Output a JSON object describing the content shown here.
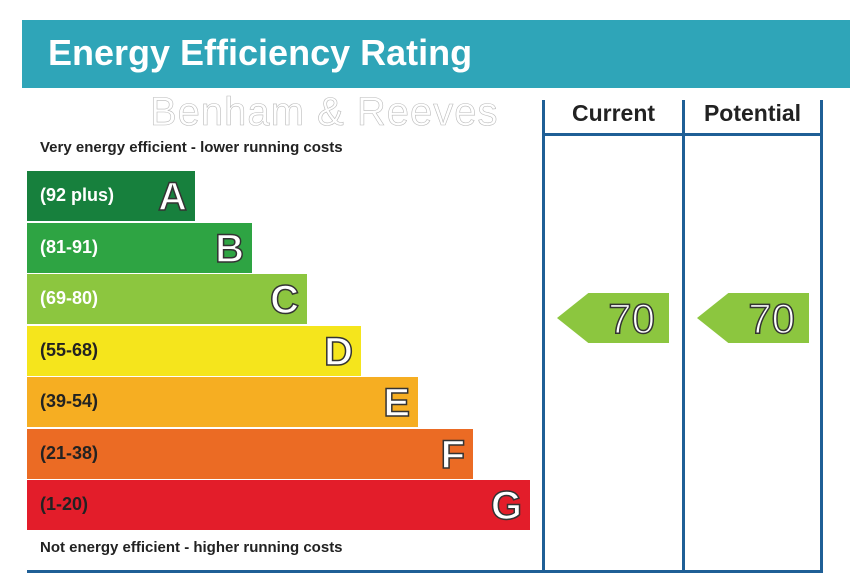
{
  "chart_data": {
    "type": "table",
    "title": "Energy Efficiency Rating",
    "top_note": "Very energy efficient - lower running costs",
    "bottom_note": "Not energy efficient - higher running costs",
    "columns": [
      "Current",
      "Potential"
    ],
    "bands": [
      {
        "range": "(92 plus)",
        "letter": "A",
        "color": "#17803d"
      },
      {
        "range": "(81-91)",
        "letter": "B",
        "color": "#2ea443"
      },
      {
        "range": "(69-80)",
        "letter": "C",
        "color": "#8cc63f"
      },
      {
        "range": "(55-68)",
        "letter": "D",
        "color": "#f5e51c"
      },
      {
        "range": "(39-54)",
        "letter": "E",
        "color": "#f6ae22"
      },
      {
        "range": "(21-38)",
        "letter": "F",
        "color": "#eb6b24"
      },
      {
        "range": "(1-20)",
        "letter": "G",
        "color": "#e31d2a"
      }
    ],
    "current": {
      "value": "70",
      "band": "C"
    },
    "potential": {
      "value": "70",
      "band": "C"
    }
  },
  "watermark": "Benham & Reeves"
}
